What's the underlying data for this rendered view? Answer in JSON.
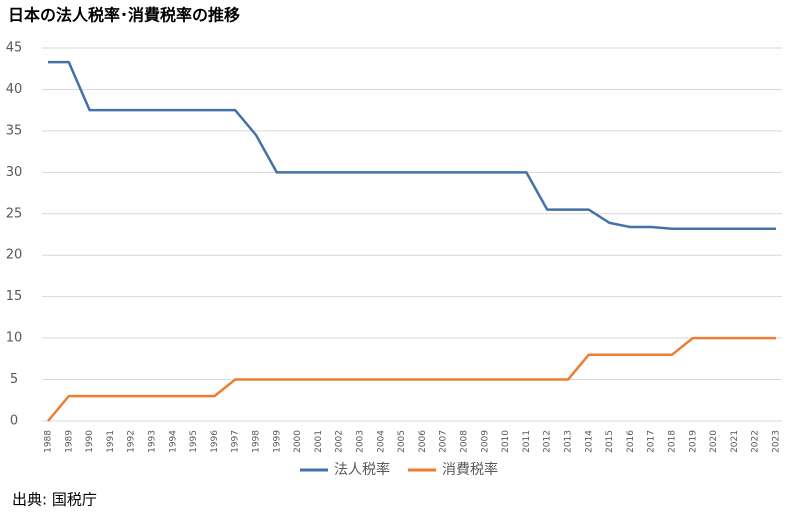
{
  "chart_data": {
    "type": "line",
    "title": "日本の法人税率･消費税率の推移",
    "source": "出典: 国税庁",
    "categories": [
      "1988",
      "1989",
      "1990",
      "1991",
      "1992",
      "1993",
      "1994",
      "1995",
      "1996",
      "1997",
      "1998",
      "1999",
      "2000",
      "2001",
      "2002",
      "2003",
      "2004",
      "2005",
      "2006",
      "2007",
      "2008",
      "2009",
      "2010",
      "2011",
      "2012",
      "2013",
      "2014",
      "2015",
      "2016",
      "2017",
      "2018",
      "2019",
      "2020",
      "2021",
      "2022",
      "2023"
    ],
    "series": [
      {
        "name": "法人税率",
        "color": "#4472a8",
        "values": [
          43.3,
          43.3,
          37.5,
          37.5,
          37.5,
          37.5,
          37.5,
          37.5,
          37.5,
          37.5,
          34.5,
          30,
          30,
          30,
          30,
          30,
          30,
          30,
          30,
          30,
          30,
          30,
          30,
          30,
          25.5,
          25.5,
          25.5,
          23.9,
          23.4,
          23.4,
          23.2,
          23.2,
          23.2,
          23.2,
          23.2,
          23.2
        ]
      },
      {
        "name": "消費税率",
        "color": "#ed7d31",
        "values": [
          0,
          3,
          3,
          3,
          3,
          3,
          3,
          3,
          3,
          5,
          5,
          5,
          5,
          5,
          5,
          5,
          5,
          5,
          5,
          5,
          5,
          5,
          5,
          5,
          5,
          5,
          8,
          8,
          8,
          8,
          8,
          10,
          10,
          10,
          10,
          10
        ]
      }
    ],
    "ylim": [
      0,
      45
    ],
    "yticks": [
      0,
      5,
      10,
      15,
      20,
      25,
      30,
      35,
      40,
      45
    ],
    "grid": true,
    "legend": "bottom"
  }
}
